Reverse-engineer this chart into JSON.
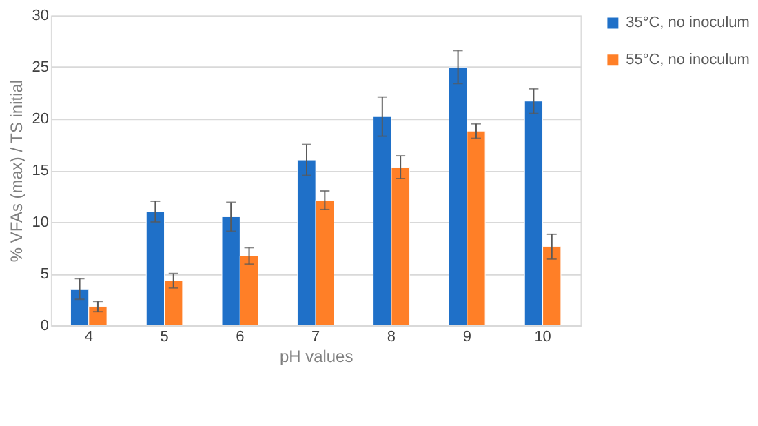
{
  "chart_data": {
    "type": "bar",
    "xlabel": "pH values",
    "ylabel": "% VFAs (max) / TS initial",
    "categories": [
      "4",
      "5",
      "6",
      "7",
      "8",
      "9",
      "10"
    ],
    "series": [
      {
        "name": "35°C, no inoculum",
        "color": "#1f70c8",
        "values": [
          3.5,
          11.0,
          10.5,
          16.0,
          20.2,
          25.0,
          21.7
        ],
        "errors": [
          1.0,
          1.0,
          1.4,
          1.5,
          1.9,
          1.6,
          1.2
        ]
      },
      {
        "name": "55°C, no inoculum",
        "color": "#ff7f27",
        "values": [
          1.8,
          4.3,
          6.7,
          12.1,
          15.3,
          18.8,
          7.6
        ],
        "errors": [
          0.5,
          0.7,
          0.8,
          0.9,
          1.1,
          0.7,
          1.2
        ]
      }
    ],
    "ylim": [
      0,
      30
    ],
    "yticks": [
      0,
      5,
      10,
      15,
      20,
      25,
      30
    ],
    "grid": "y",
    "legend": "top right"
  }
}
